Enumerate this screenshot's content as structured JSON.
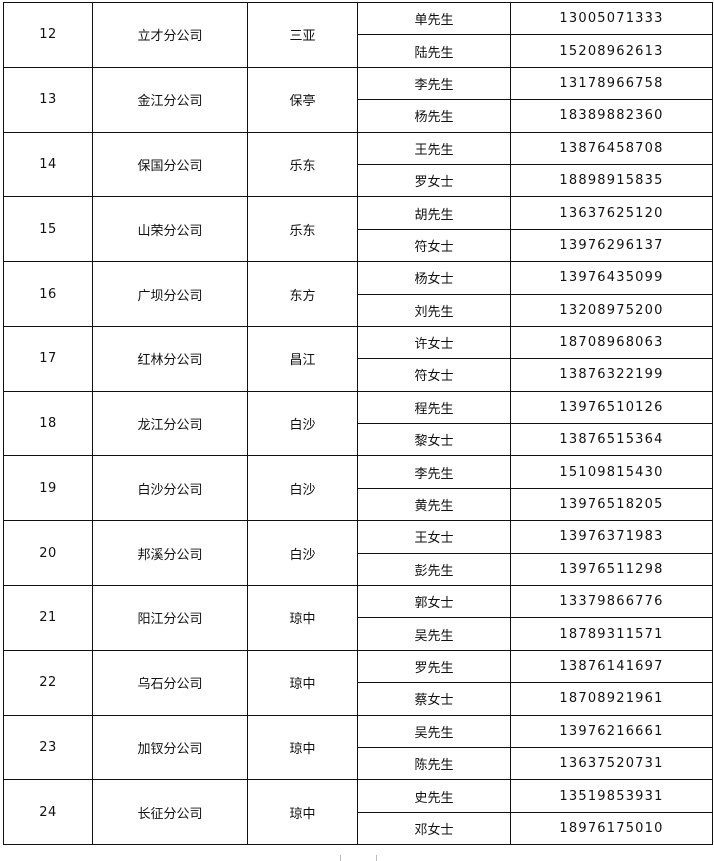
{
  "rows": [
    {
      "no": "12",
      "branch": "立才分公司",
      "region": "三亚",
      "contacts": [
        {
          "name": "单先生",
          "phone": "13005071333"
        },
        {
          "name": "陆先生",
          "phone": "15208962613"
        }
      ]
    },
    {
      "no": "13",
      "branch": "金江分公司",
      "region": "保亭",
      "contacts": [
        {
          "name": "李先生",
          "phone": "13178966758"
        },
        {
          "name": "杨先生",
          "phone": "18389882360"
        }
      ]
    },
    {
      "no": "14",
      "branch": "保国分公司",
      "region": "乐东",
      "contacts": [
        {
          "name": "王先生",
          "phone": "13876458708"
        },
        {
          "name": "罗女士",
          "phone": "18898915835"
        }
      ]
    },
    {
      "no": "15",
      "branch": "山荣分公司",
      "region": "乐东",
      "contacts": [
        {
          "name": "胡先生",
          "phone": "13637625120"
        },
        {
          "name": "符女士",
          "phone": "13976296137"
        }
      ]
    },
    {
      "no": "16",
      "branch": "广坝分公司",
      "region": "东方",
      "contacts": [
        {
          "name": "杨女士",
          "phone": "13976435099"
        },
        {
          "name": "刘先生",
          "phone": "13208975200"
        }
      ]
    },
    {
      "no": "17",
      "branch": "红林分公司",
      "region": "昌江",
      "contacts": [
        {
          "name": "许女士",
          "phone": "18708968063"
        },
        {
          "name": "符女士",
          "phone": "13876322199"
        }
      ]
    },
    {
      "no": "18",
      "branch": "龙江分公司",
      "region": "白沙",
      "contacts": [
        {
          "name": "程先生",
          "phone": "13976510126"
        },
        {
          "name": "黎女士",
          "phone": "13876515364"
        }
      ]
    },
    {
      "no": "19",
      "branch": "白沙分公司",
      "region": "白沙",
      "contacts": [
        {
          "name": "李先生",
          "phone": "15109815430"
        },
        {
          "name": "黄先生",
          "phone": "13976518205"
        }
      ]
    },
    {
      "no": "20",
      "branch": "邦溪分公司",
      "region": "白沙",
      "contacts": [
        {
          "name": "王女士",
          "phone": "13976371983"
        },
        {
          "name": "彭先生",
          "phone": "13976511298"
        }
      ]
    },
    {
      "no": "21",
      "branch": "阳江分公司",
      "region": "琼中",
      "contacts": [
        {
          "name": "郭女士",
          "phone": "13379866776"
        },
        {
          "name": "吴先生",
          "phone": "18789311571"
        }
      ]
    },
    {
      "no": "22",
      "branch": "乌石分公司",
      "region": "琼中",
      "contacts": [
        {
          "name": "罗先生",
          "phone": "13876141697"
        },
        {
          "name": "蔡女士",
          "phone": "18708921961"
        }
      ]
    },
    {
      "no": "23",
      "branch": "加钗分公司",
      "region": "琼中",
      "contacts": [
        {
          "name": "吴先生",
          "phone": "13976216661"
        },
        {
          "name": "陈先生",
          "phone": "13637520731"
        }
      ]
    },
    {
      "no": "24",
      "branch": "长征分公司",
      "region": "琼中",
      "contacts": [
        {
          "name": "史先生",
          "phone": "13519853931"
        },
        {
          "name": "邓女士",
          "phone": "18976175010"
        }
      ]
    }
  ]
}
